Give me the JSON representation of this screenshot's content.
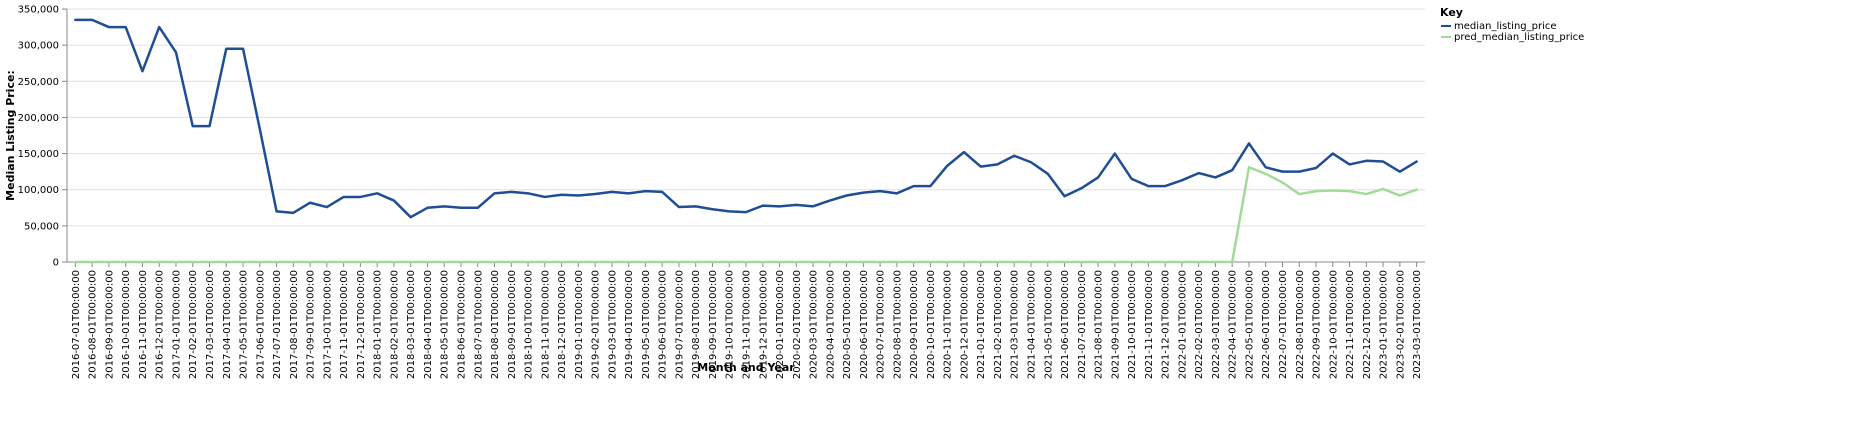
{
  "chart_data": {
    "type": "line",
    "xlabel": "Month and Year",
    "ylabel": "Median Listing Price:",
    "ylim": [
      0,
      350000
    ],
    "y_ticks": [
      0,
      50000,
      100000,
      150000,
      200000,
      250000,
      300000,
      350000
    ],
    "y_tick_labels": [
      "0",
      "50,000",
      "100,000",
      "150,000",
      "200,000",
      "250,000",
      "300,000",
      "350,000"
    ],
    "grid": true,
    "legend": {
      "title": "Key",
      "placement": "top-right"
    },
    "x": [
      "2016-07-01T00:00:00",
      "2016-08-01T00:00:00",
      "2016-09-01T00:00:00",
      "2016-10-01T00:00:00",
      "2016-11-01T00:00:00",
      "2016-12-01T00:00:00",
      "2017-01-01T00:00:00",
      "2017-02-01T00:00:00",
      "2017-03-01T00:00:00",
      "2017-04-01T00:00:00",
      "2017-05-01T00:00:00",
      "2017-06-01T00:00:00",
      "2017-07-01T00:00:00",
      "2017-08-01T00:00:00",
      "2017-09-01T00:00:00",
      "2017-10-01T00:00:00",
      "2017-11-01T00:00:00",
      "2017-12-01T00:00:00",
      "2018-01-01T00:00:00",
      "2018-02-01T00:00:00",
      "2018-03-01T00:00:00",
      "2018-04-01T00:00:00",
      "2018-05-01T00:00:00",
      "2018-06-01T00:00:00",
      "2018-07-01T00:00:00",
      "2018-08-01T00:00:00",
      "2018-09-01T00:00:00",
      "2018-10-01T00:00:00",
      "2018-11-01T00:00:00",
      "2018-12-01T00:00:00",
      "2019-01-01T00:00:00",
      "2019-02-01T00:00:00",
      "2019-03-01T00:00:00",
      "2019-04-01T00:00:00",
      "2019-05-01T00:00:00",
      "2019-06-01T00:00:00",
      "2019-07-01T00:00:00",
      "2019-08-01T00:00:00",
      "2019-09-01T00:00:00",
      "2019-10-01T00:00:00",
      "2019-11-01T00:00:00",
      "2019-12-01T00:00:00",
      "2020-01-01T00:00:00",
      "2020-02-01T00:00:00",
      "2020-03-01T00:00:00",
      "2020-04-01T00:00:00",
      "2020-05-01T00:00:00",
      "2020-06-01T00:00:00",
      "2020-07-01T00:00:00",
      "2020-08-01T00:00:00",
      "2020-09-01T00:00:00",
      "2020-10-01T00:00:00",
      "2020-11-01T00:00:00",
      "2020-12-01T00:00:00",
      "2021-01-01T00:00:00",
      "2021-02-01T00:00:00",
      "2021-03-01T00:00:00",
      "2021-04-01T00:00:00",
      "2021-05-01T00:00:00",
      "2021-06-01T00:00:00",
      "2021-07-01T00:00:00",
      "2021-08-01T00:00:00",
      "2021-09-01T00:00:00",
      "2021-10-01T00:00:00",
      "2021-11-01T00:00:00",
      "2021-12-01T00:00:00",
      "2022-01-01T00:00:00",
      "2022-02-01T00:00:00",
      "2022-03-01T00:00:00",
      "2022-04-01T00:00:00",
      "2022-05-01T00:00:00",
      "2022-06-01T00:00:00",
      "2022-07-01T00:00:00",
      "2022-08-01T00:00:00",
      "2022-09-01T00:00:00",
      "2022-10-01T00:00:00",
      "2022-11-01T00:00:00",
      "2022-12-01T00:00:00",
      "2023-01-01T00:00:00",
      "2023-02-01T00:00:00",
      "2023-03-01T00:00:00"
    ],
    "series": [
      {
        "name": "median_listing_price",
        "color": "#1f4e94",
        "values": [
          335000,
          335000,
          325000,
          325000,
          264000,
          325000,
          290000,
          188000,
          188000,
          295000,
          295000,
          184000,
          70000,
          68000,
          82000,
          76000,
          90000,
          90000,
          95000,
          85000,
          62000,
          75000,
          77000,
          75000,
          75000,
          95000,
          97000,
          95000,
          90000,
          93000,
          92000,
          94000,
          97000,
          95000,
          98000,
          97000,
          76000,
          77000,
          73000,
          70000,
          69000,
          78000,
          77000,
          79000,
          77000,
          85000,
          92000,
          96000,
          98000,
          95000,
          105000,
          105000,
          133000,
          152000,
          132000,
          135000,
          147000,
          138000,
          122000,
          91000,
          102000,
          117000,
          150000,
          115000,
          105000,
          105000,
          113000,
          123000,
          117000,
          127000,
          164000,
          131000,
          125000,
          125000,
          130000,
          150000,
          135000,
          140000,
          139000,
          125000,
          139000
        ]
      },
      {
        "name": "pred_median_listing_price",
        "color": "#a3d99b",
        "values": [
          0,
          0,
          0,
          0,
          0,
          0,
          0,
          0,
          0,
          0,
          0,
          0,
          0,
          0,
          0,
          0,
          0,
          0,
          0,
          0,
          0,
          0,
          0,
          0,
          0,
          0,
          0,
          0,
          0,
          0,
          0,
          0,
          0,
          0,
          0,
          0,
          0,
          0,
          0,
          0,
          0,
          0,
          0,
          0,
          0,
          0,
          0,
          0,
          0,
          0,
          0,
          0,
          0,
          0,
          0,
          0,
          0,
          0,
          0,
          0,
          0,
          0,
          0,
          0,
          0,
          0,
          0,
          0,
          0,
          0,
          131000,
          122000,
          110000,
          94000,
          98000,
          99000,
          98000,
          94000,
          101000,
          92000,
          100000
        ]
      }
    ]
  }
}
